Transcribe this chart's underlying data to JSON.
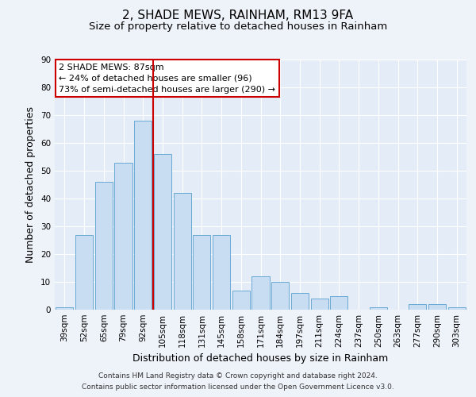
{
  "title": "2, SHADE MEWS, RAINHAM, RM13 9FA",
  "subtitle": "Size of property relative to detached houses in Rainham",
  "xlabel": "Distribution of detached houses by size in Rainham",
  "ylabel": "Number of detached properties",
  "bar_labels": [
    "39sqm",
    "52sqm",
    "65sqm",
    "79sqm",
    "92sqm",
    "105sqm",
    "118sqm",
    "131sqm",
    "145sqm",
    "158sqm",
    "171sqm",
    "184sqm",
    "197sqm",
    "211sqm",
    "224sqm",
    "237sqm",
    "250sqm",
    "263sqm",
    "277sqm",
    "290sqm",
    "303sqm"
  ],
  "bar_values": [
    1,
    27,
    46,
    53,
    68,
    56,
    42,
    27,
    27,
    7,
    12,
    10,
    6,
    4,
    5,
    0,
    1,
    0,
    2,
    2,
    1
  ],
  "bar_color": "#c9ddf2",
  "bar_edge_color": "#6aaad4",
  "ylim": [
    0,
    90
  ],
  "yticks": [
    0,
    10,
    20,
    30,
    40,
    50,
    60,
    70,
    80,
    90
  ],
  "vline_color": "#cc0000",
  "annotation_title": "2 SHADE MEWS: 87sqm",
  "annotation_line1": "← 24% of detached houses are smaller (96)",
  "annotation_line2": "73% of semi-detached houses are larger (290) →",
  "annotation_box_color": "#ffffff",
  "annotation_box_edge": "#cc0000",
  "footer_line1": "Contains HM Land Registry data © Crown copyright and database right 2024.",
  "footer_line2": "Contains public sector information licensed under the Open Government Licence v3.0.",
  "background_color": "#eef2f9",
  "plot_bg_color": "#e4ecf7",
  "grid_color": "#ffffff",
  "title_fontsize": 11,
  "subtitle_fontsize": 9.5,
  "axis_label_fontsize": 9,
  "tick_fontsize": 7.5,
  "footer_fontsize": 6.5
}
